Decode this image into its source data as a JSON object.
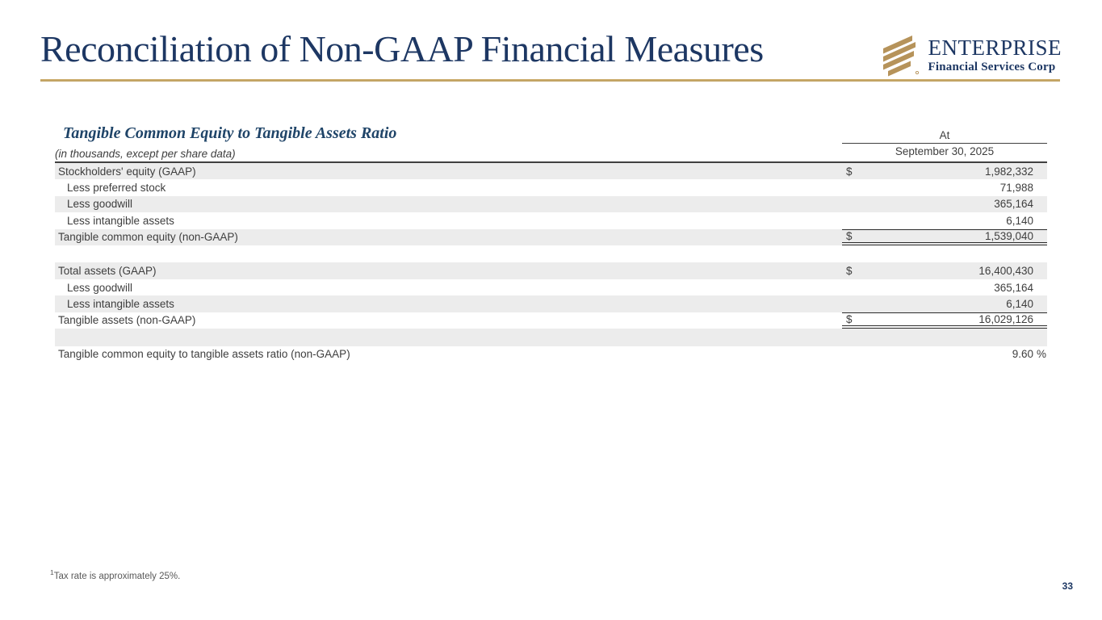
{
  "colors": {
    "navy": "#1d3763",
    "table_title_navy": "#1f4468",
    "gold": "#bb9c5d",
    "row_shade": "#ececec",
    "text": "#3e3e3e"
  },
  "header": {
    "title": "Reconciliation of Non-GAAP Financial Measures",
    "page_number": "33"
  },
  "logo": {
    "icon": "enterprise-stripes-mark",
    "name": "ENTERPRISE",
    "subtitle": "Financial Services Corp"
  },
  "table": {
    "title": "Tangible Common Equity to Tangible Assets Ratio",
    "subtitle": "(in thousands, except per share data)",
    "period_label": "At",
    "period_date": "September 30, 2025",
    "rows": [
      {
        "type": "data",
        "label": "Stockholders' equity (GAAP)",
        "dollar": "$",
        "value": "1,982,332",
        "indent": false,
        "shaded": true
      },
      {
        "type": "data",
        "label": "Less preferred stock",
        "dollar": "",
        "value": "71,988",
        "indent": true,
        "shaded": false
      },
      {
        "type": "data",
        "label": "Less goodwill",
        "dollar": "",
        "value": "365,164",
        "indent": true,
        "shaded": true
      },
      {
        "type": "data",
        "label": "Less intangible assets",
        "dollar": "",
        "value": "6,140",
        "indent": true,
        "shaded": false
      },
      {
        "type": "data",
        "label": "Tangible common equity (non-GAAP)",
        "dollar": "$",
        "value": "1,539,040",
        "indent": false,
        "shaded": true,
        "rule": "total"
      },
      {
        "type": "spacer",
        "shaded": false
      },
      {
        "type": "data",
        "label": "Total assets (GAAP)",
        "dollar": "$",
        "value": "16,400,430",
        "indent": false,
        "shaded": true
      },
      {
        "type": "data",
        "label": "Less goodwill",
        "dollar": "",
        "value": "365,164",
        "indent": true,
        "shaded": false
      },
      {
        "type": "data",
        "label": "Less intangible assets",
        "dollar": "",
        "value": "6,140",
        "indent": true,
        "shaded": true
      },
      {
        "type": "data",
        "label": "Tangible assets (non-GAAP)",
        "dollar": "$",
        "value": "16,029,126",
        "indent": false,
        "shaded": false,
        "rule": "total"
      },
      {
        "type": "spacer",
        "shaded": true
      },
      {
        "type": "data",
        "label": "Tangible common equity to tangible assets ratio (non-GAAP)",
        "dollar": "",
        "value": "9.60",
        "suffix": "%",
        "indent": false,
        "shaded": false
      }
    ]
  },
  "footnote": {
    "sup": "1",
    "text": "Tax rate is approximately 25%."
  }
}
